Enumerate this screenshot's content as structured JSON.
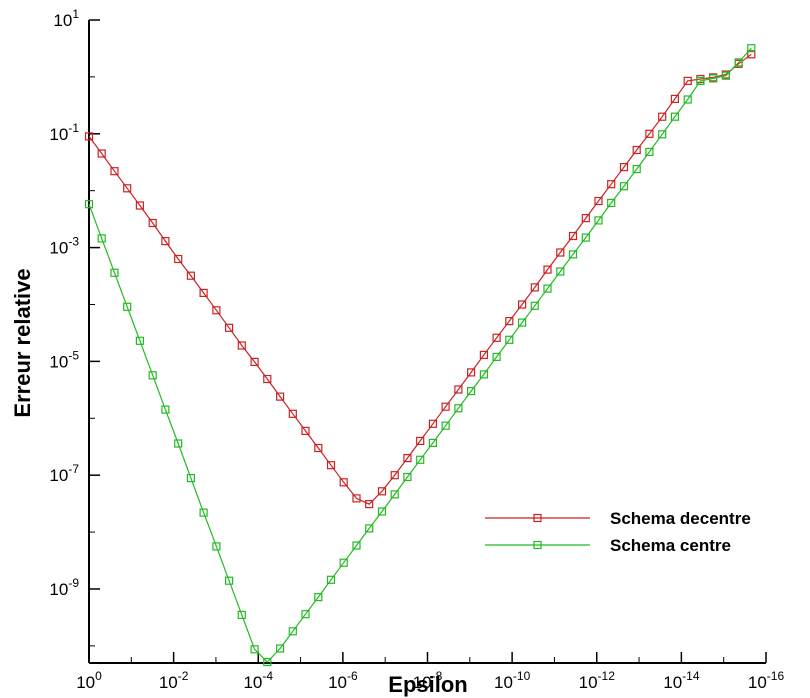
{
  "chart_data": {
    "type": "line",
    "xlabel": "Epsilon",
    "ylabel": "Erreur relative",
    "x_scale": "log",
    "y_scale": "log",
    "x_axis_direction": "decreasing",
    "xlim": [
      1,
      1e-16
    ],
    "ylim": [
      5e-11,
      10
    ],
    "x_ticks": [
      {
        "value": 1,
        "base": "10",
        "exp": "0"
      },
      {
        "value": 0.01,
        "base": "10",
        "exp": "-2"
      },
      {
        "value": 0.0001,
        "base": "10",
        "exp": "-4"
      },
      {
        "value": 1e-06,
        "base": "10",
        "exp": "-6"
      },
      {
        "value": 1e-08,
        "base": "10",
        "exp": "-8"
      },
      {
        "value": 1e-10,
        "base": "10",
        "exp": "-10"
      },
      {
        "value": 1e-12,
        "base": "10",
        "exp": "-12"
      },
      {
        "value": 1e-14,
        "base": "10",
        "exp": "-14"
      },
      {
        "value": 1e-16,
        "base": "10",
        "exp": "-16"
      }
    ],
    "y_ticks": [
      {
        "value": 10,
        "base": "10",
        "exp": "1"
      },
      {
        "value": 0.1,
        "base": "10",
        "exp": "-1"
      },
      {
        "value": 0.001,
        "base": "10",
        "exp": "-3"
      },
      {
        "value": 1e-05,
        "base": "10",
        "exp": "-5"
      },
      {
        "value": 1e-07,
        "base": "10",
        "exp": "-7"
      },
      {
        "value": 1e-09,
        "base": "10",
        "exp": "-9"
      }
    ],
    "legend_position": "lower-right",
    "marker": "square",
    "series": [
      {
        "name": "Schema decentre",
        "color": "#cc2222",
        "points": [
          [
            1,
            0.09
          ],
          [
            0.5,
            0.045
          ],
          [
            0.25,
            0.022
          ],
          [
            0.125,
            0.011
          ],
          [
            0.0625,
            0.0055
          ],
          [
            0.03125,
            0.0027
          ],
          [
            0.015625,
            0.0013
          ],
          [
            0.0078125,
            0.00063
          ],
          [
            0.00390625,
            0.00032
          ],
          [
            0.001953125,
            0.00016
          ],
          [
            0.0009765625,
            7.9e-05
          ],
          [
            0.00048828125,
            3.9e-05
          ],
          [
            0.000244140625,
            1.9e-05
          ],
          [
            0.0001220703125,
            9.8e-06
          ],
          [
            6.103515625e-05,
            4.9e-06
          ],
          [
            3.0517578125e-05,
            2.4e-06
          ],
          [
            1.52587890625e-05,
            1.2e-06
          ],
          [
            7.62939453125e-06,
            6e-07
          ],
          [
            3.814697265625e-06,
            3e-07
          ],
          [
            1.9073486328125e-06,
            1.5e-07
          ],
          [
            9.5367431640625e-07,
            7.5e-08
          ],
          [
            4.76837158203125e-07,
            3.9e-08
          ],
          [
            2.384185791015625e-07,
            3.1e-08
          ],
          [
            1.1920928955078125e-07,
            5.2e-08
          ],
          [
            5.960464477539063e-08,
            1e-07
          ],
          [
            2.9802322387695312e-08,
            2e-07
          ],
          [
            1.4901161193847656e-08,
            4e-07
          ],
          [
            7.450580596923828e-09,
            8e-07
          ],
          [
            3.725290298461914e-09,
            1.6e-06
          ],
          [
            1.862645149230957e-09,
            3.2e-06
          ],
          [
            9.313225746154785e-10,
            6.4e-06
          ],
          [
            4.656612873077393e-10,
            1.3e-05
          ],
          [
            2.3283064365386963e-10,
            2.6e-05
          ],
          [
            1.1641532182693481e-10,
            5.1e-05
          ],
          [
            5.820766091346741e-11,
            0.0001
          ],
          [
            2.9103830456733704e-11,
            0.0002
          ],
          [
            1.4551915228366852e-11,
            0.00041
          ],
          [
            7.275957614183426e-12,
            0.00082
          ],
          [
            3.637978807091713e-12,
            0.0016
          ],
          [
            1.8189894035458565e-12,
            0.0033
          ],
          [
            9.094947017729282e-13,
            0.0066
          ],
          [
            4.547473508864641e-13,
            0.013
          ],
          [
            2.2737367544323206e-13,
            0.026
          ],
          [
            1.1368683772161603e-13,
            0.052
          ],
          [
            5.684341886080802e-14,
            0.1
          ],
          [
            2.842170943040401e-14,
            0.2
          ],
          [
            1.4210854715202004e-14,
            0.41
          ],
          [
            7.105427357601002e-15,
            0.85
          ],
          [
            3.552713678800501e-15,
            0.92
          ],
          [
            1.7763568394002505e-15,
            0.98
          ],
          [
            8.881784197001252e-16,
            1.1
          ],
          [
            4.440892098500626e-16,
            1.7
          ],
          [
            2.220446049250313e-16,
            2.5
          ]
        ]
      },
      {
        "name": "Schema centre",
        "color": "#22bb22",
        "points": [
          [
            1,
            0.0058
          ],
          [
            0.5,
            0.00145
          ],
          [
            0.25,
            0.00036
          ],
          [
            0.125,
            9.1e-05
          ],
          [
            0.0625,
            2.3e-05
          ],
          [
            0.03125,
            5.7e-06
          ],
          [
            0.015625,
            1.42e-06
          ],
          [
            0.0078125,
            3.6e-07
          ],
          [
            0.00390625,
            8.9e-08
          ],
          [
            0.001953125,
            2.2e-08
          ],
          [
            0.0009765625,
            5.6e-09
          ],
          [
            0.00048828125,
            1.4e-09
          ],
          [
            0.000244140625,
            3.5e-10
          ],
          [
            0.0001220703125,
            8.7e-11
          ],
          [
            6.103515625e-05,
            5.2e-11
          ],
          [
            3.0517578125e-05,
            9e-11
          ],
          [
            1.52587890625e-05,
            1.8e-10
          ],
          [
            7.62939453125e-06,
            3.6e-10
          ],
          [
            3.814697265625e-06,
            7.2e-10
          ],
          [
            1.9073486328125e-06,
            1.45e-09
          ],
          [
            9.5367431640625e-07,
            2.9e-09
          ],
          [
            4.76837158203125e-07,
            5.8e-09
          ],
          [
            2.384185791015625e-07,
            1.16e-08
          ],
          [
            1.1920928955078125e-07,
            2.3e-08
          ],
          [
            5.960464477539063e-08,
            4.6e-08
          ],
          [
            2.9802322387695312e-08,
            9.3e-08
          ],
          [
            1.4901161193847656e-08,
            1.86e-07
          ],
          [
            7.450580596923828e-09,
            3.7e-07
          ],
          [
            3.725290298461914e-09,
            7.4e-07
          ],
          [
            1.862645149230957e-09,
            1.5e-06
          ],
          [
            9.313225746154785e-10,
            3e-06
          ],
          [
            4.656612873077393e-10,
            5.9e-06
          ],
          [
            2.3283064365386963e-10,
            1.2e-05
          ],
          [
            1.1641532182693481e-10,
            2.4e-05
          ],
          [
            5.820766091346741e-11,
            4.8e-05
          ],
          [
            2.9103830456733704e-11,
            9.5e-05
          ],
          [
            1.4551915228366852e-11,
            0.00019
          ],
          [
            7.275957614183426e-12,
            0.00038
          ],
          [
            3.637978807091713e-12,
            0.00076
          ],
          [
            1.8189894035458565e-12,
            0.0015
          ],
          [
            9.094947017729282e-13,
            0.003
          ],
          [
            4.547473508864641e-13,
            0.0061
          ],
          [
            2.2737367544323206e-13,
            0.012
          ],
          [
            1.1368683772161603e-13,
            0.024
          ],
          [
            5.684341886080802e-14,
            0.048
          ],
          [
            2.842170943040401e-14,
            0.098
          ],
          [
            1.4210854715202004e-14,
            0.2
          ],
          [
            7.105427357601002e-15,
            0.4
          ],
          [
            3.552713678800501e-15,
            0.85
          ],
          [
            1.7763568394002505e-15,
            0.94
          ],
          [
            8.881784197001252e-16,
            1.05
          ],
          [
            4.440892098500626e-16,
            1.8
          ],
          [
            2.220446049250313e-16,
            3.2
          ]
        ]
      }
    ]
  }
}
